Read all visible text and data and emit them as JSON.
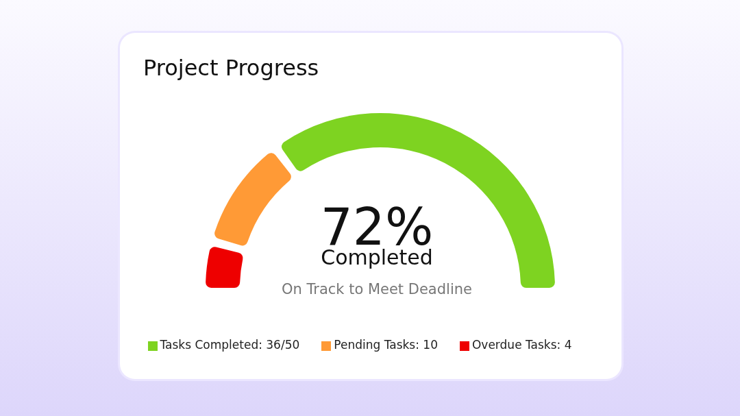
{
  "chart_data": {
    "type": "donut",
    "title": "Project Progress",
    "categories": [
      "Tasks Completed: 36/50",
      "Pending Tasks: 10",
      "Overdue Tasks: 4"
    ],
    "values": [
      36,
      10,
      4
    ],
    "colors": [
      "#7ed321",
      "#ff9a36",
      "#ee0000"
    ],
    "annotations": [
      "72%",
      "Completed",
      "On Track to Meet Deadline"
    ],
    "legend": "bottom"
  }
}
